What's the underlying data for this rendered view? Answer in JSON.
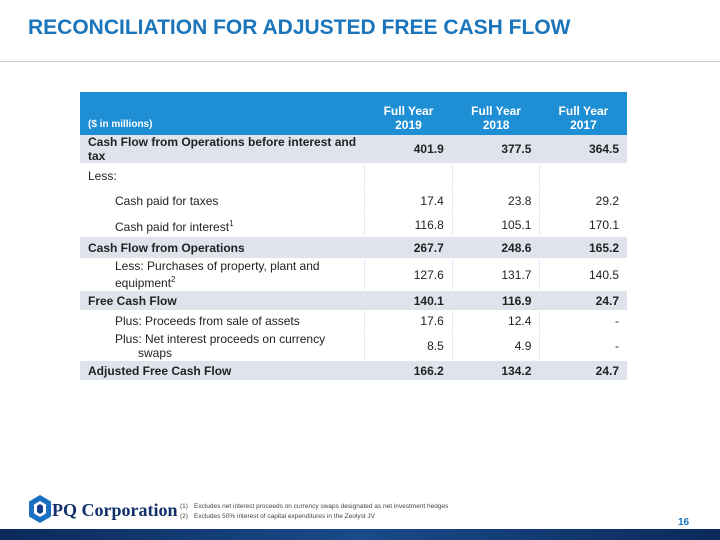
{
  "header": {
    "title": "RECONCILIATION FOR ADJUSTED FREE CASH FLOW"
  },
  "table": {
    "units": "($ in millions)",
    "columns": [
      {
        "line1": "Full Year",
        "line2": "2019"
      },
      {
        "line1": "Full Year",
        "line2": "2018"
      },
      {
        "line1": "Full Year",
        "line2": "2017"
      }
    ],
    "rows": [
      {
        "kind": "total",
        "label": "Cash Flow from Operations before interest and tax",
        "values": [
          401.9,
          377.5,
          364.5
        ]
      },
      {
        "kind": "plain",
        "label": "Less:",
        "values": [
          "",
          "",
          ""
        ]
      },
      {
        "kind": "item",
        "label": "Cash paid for taxes",
        "values": [
          17.4,
          23.8,
          29.2
        ]
      },
      {
        "kind": "item",
        "label": "Cash paid for interest",
        "sup": "1",
        "values": [
          116.8,
          105.1,
          170.1
        ]
      },
      {
        "kind": "total",
        "label": "Cash Flow from Operations",
        "values": [
          267.7,
          248.6,
          165.2
        ]
      },
      {
        "kind": "item",
        "label": "Less: Purchases of property, plant and equipment",
        "sup": "2",
        "values": [
          127.6,
          131.7,
          140.5
        ]
      },
      {
        "kind": "total",
        "label": "Free Cash Flow",
        "values": [
          140.1,
          116.9,
          24.7
        ]
      },
      {
        "kind": "item",
        "label": "Plus: Proceeds from sale of assets",
        "values": [
          17.6,
          12.4,
          "-"
        ]
      },
      {
        "kind": "item",
        "label": "Plus: Net interest proceeds on currency swaps",
        "values": [
          8.5,
          4.9,
          "-"
        ]
      },
      {
        "kind": "total",
        "label": "Adjusted Free Cash Flow",
        "values": [
          166.2,
          134.2,
          24.7
        ]
      }
    ]
  },
  "footnotes": [
    {
      "marker": "(1)",
      "text": "Excludes net interest proceeds on currency swaps designated as net investment hedges"
    },
    {
      "marker": "(2)",
      "text": "Excludes 50% interest of capital expenditures in the Zeolyst JV"
    }
  ],
  "logo": {
    "text": "PQ Corporation"
  },
  "page_number": "16"
}
